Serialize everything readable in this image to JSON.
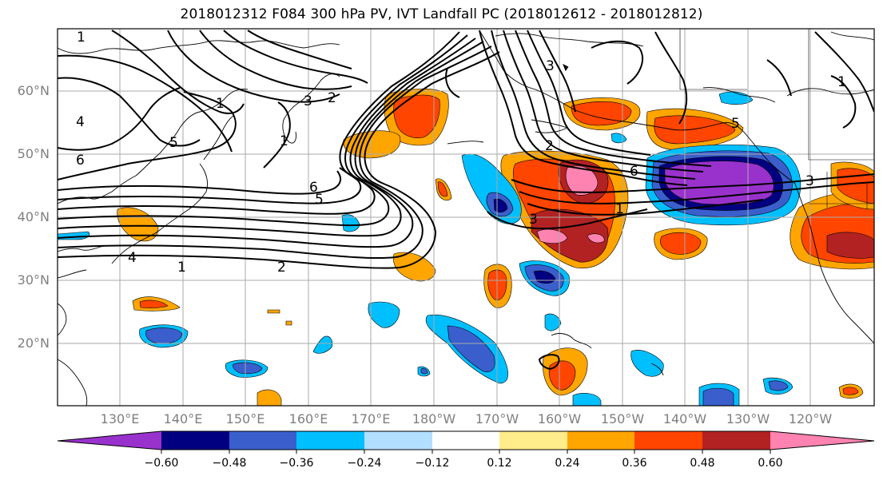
{
  "title": "2018012312 F084 300 hPa PV, IVT Landfall PC (2018012612 - 2018012812)",
  "lat_labels": [
    "60°N",
    "50°N",
    "40°N",
    "30°N",
    "20°N"
  ],
  "lon_labels": [
    "130°E",
    "140°E",
    "150°E",
    "160°E",
    "170°E",
    "180°W",
    "170°W",
    "160°W",
    "150°W",
    "140°W",
    "130°W",
    "120°W"
  ],
  "colorbar": {
    "colors": [
      "#9932cc",
      "#000080",
      "#3a5fcd",
      "#00bfff",
      "#b2dfff",
      "#ffffff",
      "#ffec8b",
      "#ffa500",
      "#ff4500",
      "#b22222",
      "#ff83b0"
    ],
    "ticks": [
      "−0.60",
      "−0.48",
      "−0.36",
      "−0.24",
      "−0.12",
      "0.12",
      "0.24",
      "0.36",
      "0.48",
      "0.60"
    ]
  },
  "contour_labels": [
    "1",
    "4",
    "6",
    "5",
    "1",
    "3",
    "2",
    "6",
    "5",
    "1",
    "2",
    "3",
    "1",
    "2",
    "6",
    "1",
    "3",
    "3",
    "1",
    "5",
    "4"
  ]
}
